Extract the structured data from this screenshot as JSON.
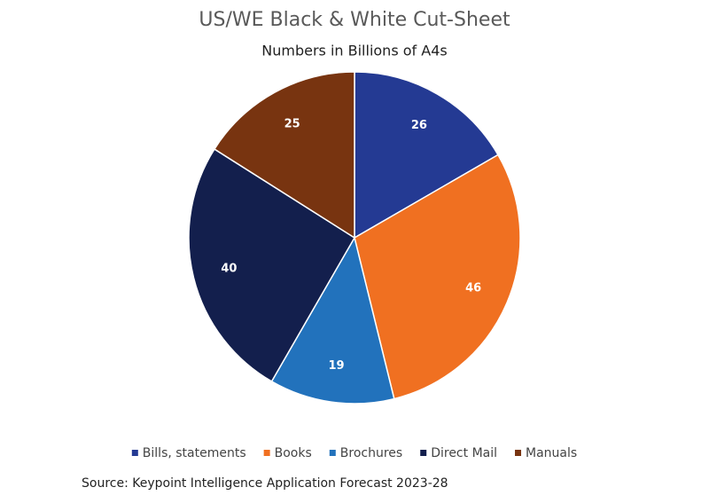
{
  "chart_data": {
    "type": "pie",
    "title": "US/WE Black & White Cut-Sheet",
    "subtitle": "Numbers in Billions of A4s",
    "categories": [
      "Bills, statements",
      "Books",
      "Brochures",
      "Direct Mail",
      "Manuals"
    ],
    "values": [
      26,
      46,
      19,
      40,
      25
    ],
    "colors": [
      "#243a93",
      "#f07021",
      "#2272bc",
      "#131f4d",
      "#783410"
    ],
    "legend": "bottom",
    "source": "Source: Keypoint Intelligence Application Forecast 2023-28"
  }
}
